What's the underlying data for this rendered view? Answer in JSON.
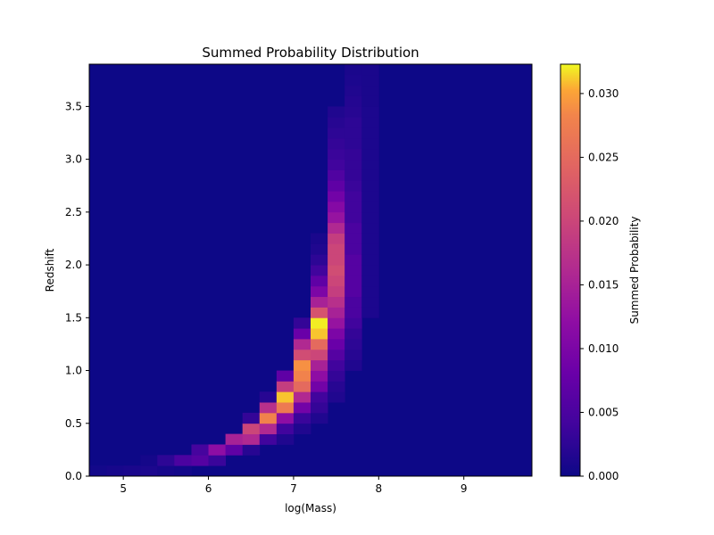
{
  "chart_data": {
    "type": "heatmap",
    "title": "Summed Probability Distribution",
    "xlabel": "log(Mass)",
    "ylabel": "Redshift",
    "colorbar_label": "Summed Probability",
    "colormap": "plasma",
    "xlim": [
      4.6,
      9.8
    ],
    "ylim": [
      0.0,
      3.9
    ],
    "x_ticks": [
      5,
      6,
      7,
      8,
      9
    ],
    "x_tick_labels": [
      "5",
      "6",
      "7",
      "8",
      "9"
    ],
    "y_ticks": [
      0.0,
      0.5,
      1.0,
      1.5,
      2.0,
      2.5,
      3.0,
      3.5
    ],
    "y_tick_labels": [
      "0.0",
      "0.5",
      "1.0",
      "1.5",
      "2.0",
      "2.5",
      "3.0",
      "3.5"
    ],
    "color_range": [
      0.0,
      0.0323
    ],
    "colorbar_ticks": [
      0.0,
      0.005,
      0.01,
      0.015,
      0.02,
      0.025,
      0.03
    ],
    "colorbar_tick_labels": [
      "0.000",
      "0.005",
      "0.010",
      "0.015",
      "0.020",
      "0.025",
      "0.030"
    ],
    "x_bin_width": 0.2,
    "y_bin_width": 0.1,
    "grid": false,
    "background_value": 0.0,
    "cells": [
      [
        4.6,
        0.0,
        0.0005
      ],
      [
        4.8,
        0.0,
        0.0008
      ],
      [
        5.0,
        0.0,
        0.001
      ],
      [
        5.2,
        0.0,
        0.0012
      ],
      [
        5.4,
        0.0,
        0.0008
      ],
      [
        5.6,
        0.0,
        0.0005
      ],
      [
        5.2,
        0.1,
        0.0006
      ],
      [
        5.4,
        0.1,
        0.0025
      ],
      [
        5.6,
        0.1,
        0.005
      ],
      [
        5.8,
        0.1,
        0.006
      ],
      [
        6.0,
        0.1,
        0.0035
      ],
      [
        5.8,
        0.2,
        0.0045
      ],
      [
        6.0,
        0.2,
        0.012
      ],
      [
        6.2,
        0.2,
        0.007
      ],
      [
        6.4,
        0.2,
        0.002
      ],
      [
        6.2,
        0.3,
        0.015
      ],
      [
        6.4,
        0.3,
        0.016
      ],
      [
        6.6,
        0.3,
        0.004
      ],
      [
        6.8,
        0.3,
        0.0015
      ],
      [
        6.4,
        0.4,
        0.02
      ],
      [
        6.6,
        0.4,
        0.016
      ],
      [
        6.8,
        0.4,
        0.004
      ],
      [
        7.0,
        0.4,
        0.0015
      ],
      [
        6.4,
        0.5,
        0.003
      ],
      [
        6.6,
        0.5,
        0.028
      ],
      [
        6.8,
        0.5,
        0.012
      ],
      [
        7.0,
        0.5,
        0.0035
      ],
      [
        7.2,
        0.5,
        0.0015
      ],
      [
        6.6,
        0.6,
        0.017
      ],
      [
        6.8,
        0.6,
        0.027
      ],
      [
        7.0,
        0.6,
        0.009
      ],
      [
        7.2,
        0.6,
        0.003
      ],
      [
        6.6,
        0.7,
        0.002
      ],
      [
        6.8,
        0.7,
        0.031
      ],
      [
        7.0,
        0.7,
        0.016
      ],
      [
        7.2,
        0.7,
        0.004
      ],
      [
        7.4,
        0.7,
        0.0015
      ],
      [
        6.8,
        0.8,
        0.019
      ],
      [
        7.0,
        0.8,
        0.025
      ],
      [
        7.2,
        0.8,
        0.009
      ],
      [
        7.4,
        0.8,
        0.002
      ],
      [
        6.8,
        0.9,
        0.007
      ],
      [
        7.0,
        0.9,
        0.028
      ],
      [
        7.2,
        0.9,
        0.012
      ],
      [
        7.4,
        0.9,
        0.003
      ],
      [
        7.0,
        1.0,
        0.029
      ],
      [
        7.2,
        1.0,
        0.015
      ],
      [
        7.4,
        1.0,
        0.004
      ],
      [
        7.6,
        1.0,
        0.0015
      ],
      [
        7.0,
        1.1,
        0.021
      ],
      [
        7.2,
        1.1,
        0.02
      ],
      [
        7.4,
        1.1,
        0.006
      ],
      [
        7.6,
        1.1,
        0.002
      ],
      [
        7.0,
        1.2,
        0.016
      ],
      [
        7.2,
        1.2,
        0.025
      ],
      [
        7.4,
        1.2,
        0.008
      ],
      [
        7.6,
        1.2,
        0.0025
      ],
      [
        7.0,
        1.3,
        0.008
      ],
      [
        7.2,
        1.3,
        0.031
      ],
      [
        7.4,
        1.3,
        0.01
      ],
      [
        7.6,
        1.3,
        0.003
      ],
      [
        7.0,
        1.4,
        0.003
      ],
      [
        7.2,
        1.4,
        0.032
      ],
      [
        7.4,
        1.4,
        0.013
      ],
      [
        7.6,
        1.4,
        0.004
      ],
      [
        7.2,
        1.5,
        0.022
      ],
      [
        7.4,
        1.5,
        0.015
      ],
      [
        7.6,
        1.5,
        0.005
      ],
      [
        7.2,
        1.6,
        0.015
      ],
      [
        7.4,
        1.6,
        0.017
      ],
      [
        7.6,
        1.6,
        0.005
      ],
      [
        7.2,
        1.7,
        0.01
      ],
      [
        7.4,
        1.7,
        0.019
      ],
      [
        7.6,
        1.7,
        0.006
      ],
      [
        7.2,
        1.8,
        0.007
      ],
      [
        7.4,
        1.8,
        0.02
      ],
      [
        7.6,
        1.8,
        0.006
      ],
      [
        7.2,
        1.9,
        0.004
      ],
      [
        7.4,
        1.9,
        0.021
      ],
      [
        7.6,
        1.9,
        0.006
      ],
      [
        7.2,
        2.0,
        0.0025
      ],
      [
        7.4,
        2.0,
        0.02
      ],
      [
        7.6,
        2.0,
        0.006
      ],
      [
        7.2,
        2.1,
        0.0015
      ],
      [
        7.4,
        2.1,
        0.02
      ],
      [
        7.6,
        2.1,
        0.005
      ],
      [
        7.2,
        2.2,
        0.001
      ],
      [
        7.4,
        2.2,
        0.019
      ],
      [
        7.6,
        2.2,
        0.005
      ],
      [
        7.4,
        2.3,
        0.016
      ],
      [
        7.6,
        2.3,
        0.005
      ],
      [
        7.4,
        2.4,
        0.013
      ],
      [
        7.6,
        2.4,
        0.004
      ],
      [
        7.4,
        2.5,
        0.011
      ],
      [
        7.6,
        2.5,
        0.004
      ],
      [
        7.4,
        2.6,
        0.009
      ],
      [
        7.6,
        2.6,
        0.004
      ],
      [
        7.4,
        2.7,
        0.007
      ],
      [
        7.6,
        2.7,
        0.0035
      ],
      [
        7.4,
        2.8,
        0.0055
      ],
      [
        7.6,
        2.8,
        0.003
      ],
      [
        7.4,
        2.9,
        0.004
      ],
      [
        7.6,
        2.9,
        0.003
      ],
      [
        7.4,
        3.0,
        0.0035
      ],
      [
        7.6,
        3.0,
        0.003
      ],
      [
        7.4,
        3.1,
        0.003
      ],
      [
        7.6,
        3.1,
        0.0025
      ],
      [
        7.4,
        3.2,
        0.0025
      ],
      [
        7.6,
        3.2,
        0.0025
      ],
      [
        7.4,
        3.3,
        0.002
      ],
      [
        7.6,
        3.3,
        0.0025
      ],
      [
        7.4,
        3.4,
        0.0015
      ],
      [
        7.6,
        3.4,
        0.002
      ],
      [
        7.6,
        3.5,
        0.0018
      ],
      [
        7.6,
        3.6,
        0.0015
      ],
      [
        7.6,
        3.7,
        0.0012
      ],
      [
        7.6,
        3.8,
        0.001
      ],
      [
        7.8,
        1.5,
        0.0012
      ],
      [
        7.8,
        1.6,
        0.0012
      ],
      [
        7.8,
        1.7,
        0.0012
      ],
      [
        7.8,
        1.8,
        0.0012
      ],
      [
        7.8,
        1.9,
        0.0012
      ],
      [
        7.8,
        2.0,
        0.0012
      ],
      [
        7.8,
        2.1,
        0.0012
      ],
      [
        7.8,
        2.2,
        0.0012
      ],
      [
        7.8,
        2.3,
        0.0012
      ],
      [
        7.8,
        2.4,
        0.0012
      ],
      [
        7.8,
        2.5,
        0.0012
      ],
      [
        7.8,
        2.6,
        0.0012
      ],
      [
        7.8,
        2.7,
        0.0012
      ],
      [
        7.8,
        2.8,
        0.0012
      ],
      [
        7.8,
        2.9,
        0.0012
      ],
      [
        7.8,
        3.0,
        0.0012
      ],
      [
        7.8,
        3.1,
        0.0012
      ],
      [
        7.8,
        3.2,
        0.0012
      ],
      [
        7.8,
        3.3,
        0.0012
      ],
      [
        7.8,
        3.4,
        0.0012
      ],
      [
        7.8,
        3.5,
        0.001
      ],
      [
        7.8,
        3.6,
        0.001
      ],
      [
        7.8,
        3.7,
        0.001
      ],
      [
        7.8,
        3.8,
        0.001
      ]
    ]
  }
}
